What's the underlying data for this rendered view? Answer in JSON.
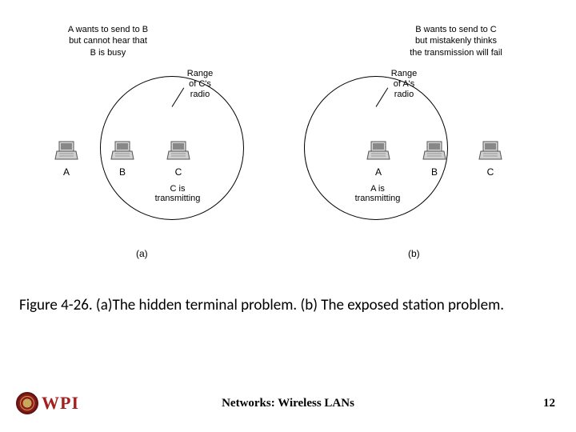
{
  "figure": {
    "panelA": {
      "topCaption": "A wants to send to B\nbut cannot hear that\nB is busy",
      "rangeLabel": "Range\nof C's\nradio",
      "stations": {
        "A": "A",
        "B": "B",
        "C": "C"
      },
      "transmitting": "C is\ntransmitting",
      "letter": "(a)",
      "circleColor": "#000000"
    },
    "panelB": {
      "topCaption": "B wants to send to C\nbut mistakenly thinks\nthe transmission will fail",
      "rangeLabel": "Range\nof A's\nradio",
      "stations": {
        "A": "A",
        "B": "B",
        "C": "C"
      },
      "transmitting": "A is\ntransmitting",
      "letter": "(b)",
      "circleColor": "#000000"
    }
  },
  "caption": "Figure 4-26. (a)The hidden terminal problem. (b) The exposed station problem.",
  "footer": {
    "logoText": "WPI",
    "title": "Networks: Wireless LANs",
    "page": "12"
  },
  "style": {
    "captionFontSize": 19,
    "bodyFontSize": 11,
    "accentColor": "#a32020",
    "background": "#ffffff"
  }
}
